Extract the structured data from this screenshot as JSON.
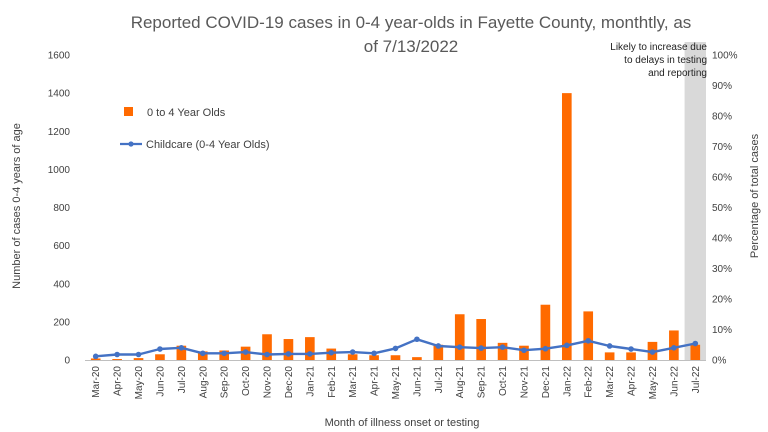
{
  "chart_data": {
    "type": "bar",
    "title_lines": [
      "Reported COVID-19 cases in 0-4 year-olds in Fayette County, monthtly, as",
      "of 7/13/2022"
    ],
    "xlabel": "Month of illness onset or testing",
    "ylabel": "Number of cases 0-4 years of age",
    "y2label": "Percentage of total cases",
    "categories": [
      "Mar-20",
      "Apr-20",
      "May-20",
      "Jun-20",
      "Jul-20",
      "Aug-20",
      "Sep-20",
      "Oct-20",
      "Nov-20",
      "Dec-20",
      "Jan-21",
      "Feb-21",
      "Mar-21",
      "Apr-21",
      "May-21",
      "Jun-21",
      "Jul-21",
      "Aug-21",
      "Sep-21",
      "Oct-21",
      "Nov-21",
      "Dec-21",
      "Jan-22",
      "Feb-22",
      "Mar-22",
      "Apr-22",
      "May-22",
      "Jun-22",
      "Jul-22"
    ],
    "ylim": [
      0,
      1600
    ],
    "yticks": [
      0,
      200,
      400,
      600,
      800,
      1000,
      1200,
      1400,
      1600
    ],
    "y2lim": [
      0,
      100
    ],
    "y2ticks": [
      "0%",
      "10%",
      "20%",
      "30%",
      "40%",
      "50%",
      "60%",
      "70%",
      "80%",
      "90%",
      "100%"
    ],
    "series": [
      {
        "name": "0 to 4 Year Olds",
        "kind": "bar",
        "color": "#FF6A00",
        "axis": "left",
        "values": [
          8,
          5,
          10,
          30,
          75,
          45,
          50,
          70,
          135,
          110,
          120,
          60,
          30,
          25,
          25,
          15,
          80,
          240,
          215,
          90,
          75,
          290,
          1400,
          255,
          40,
          40,
          95,
          155,
          80
        ]
      },
      {
        "name": "Childcare (0-4 Year Olds)",
        "kind": "line",
        "color": "#4472C4",
        "axis": "right",
        "values": [
          1.2,
          1.8,
          1.8,
          3.6,
          4.0,
          2.2,
          2.2,
          2.6,
          1.8,
          2.0,
          2.0,
          2.4,
          2.6,
          2.2,
          3.8,
          6.8,
          4.6,
          4.2,
          3.9,
          4.2,
          3.2,
          3.7,
          4.8,
          6.3,
          4.6,
          3.6,
          2.6,
          4.0,
          5.4
        ]
      }
    ],
    "legend_position": "top-left",
    "shaded_region": {
      "category": "Jul-22",
      "color": "#D9D9D9",
      "note_lines": [
        "Likely to increase due",
        "to delays in testing",
        "and reporting"
      ]
    },
    "grid": false
  }
}
